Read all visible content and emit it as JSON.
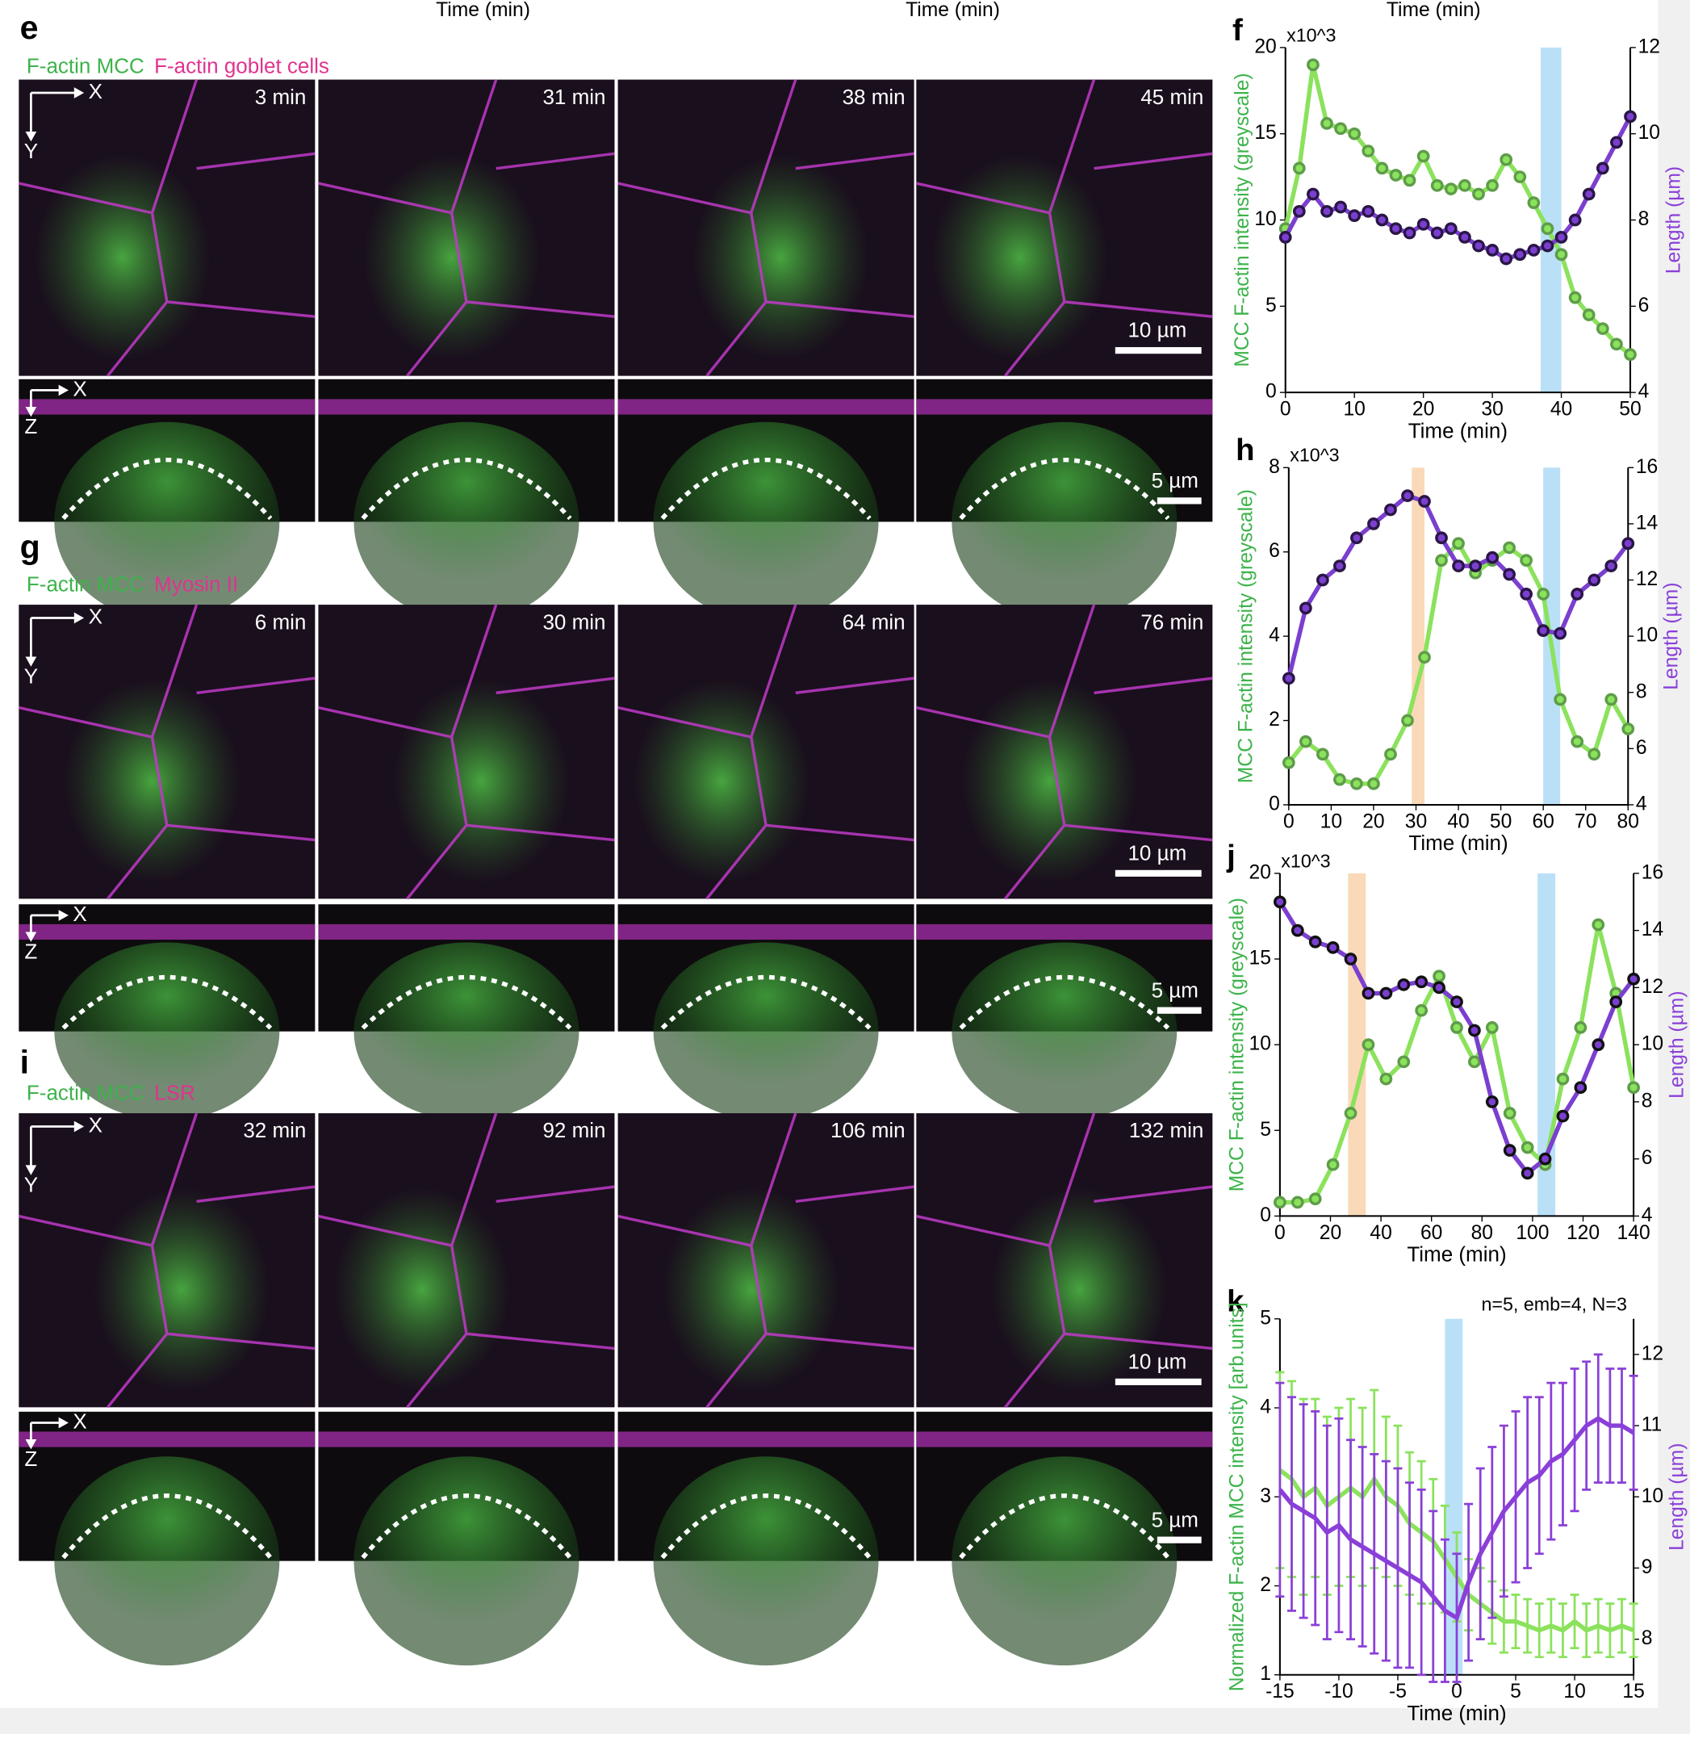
{
  "figure": {
    "top_labels": [
      "Time (min)",
      "Time (min)",
      "Time (min)"
    ],
    "panels": [
      {
        "label": "e",
        "channels": [
          {
            "text": "F-actin MCC",
            "color": "#3cb34a"
          },
          {
            "text": "F-actin goblet cells",
            "color": "#e0338f"
          }
        ],
        "xy_axes": [
          "X",
          "Y"
        ],
        "xz_axes": [
          "X",
          "Z"
        ],
        "times": [
          "3 min",
          "31 min",
          "38 min",
          "45 min"
        ],
        "scale_xy": "10 µm",
        "scale_xz": "5 µm"
      },
      {
        "label": "g",
        "channels": [
          {
            "text": "F-actin MCC",
            "color": "#3cb34a"
          },
          {
            "text": "Myosin II",
            "color": "#e0338f"
          }
        ],
        "xy_axes": [
          "X",
          "Y"
        ],
        "xz_axes": [
          "X",
          "Z"
        ],
        "times": [
          "6 min",
          "30 min",
          "64 min",
          "76 min"
        ],
        "scale_xy": "10 µm",
        "scale_xz": "5 µm"
      },
      {
        "label": "i",
        "channels": [
          {
            "text": "F-actin MCC",
            "color": "#3cb34a"
          },
          {
            "text": "LSR",
            "color": "#e0338f"
          }
        ],
        "xy_axes": [
          "X",
          "Y"
        ],
        "xz_axes": [
          "X",
          "Z"
        ],
        "times": [
          "32 min",
          "92 min",
          "106 min",
          "132 min"
        ],
        "scale_xy": "10 µm",
        "scale_xz": "5 µm"
      }
    ]
  },
  "chart_data": [
    {
      "type": "line",
      "panel_label": "f",
      "multiplier_label": "x10^3",
      "xlabel": "Time (min)",
      "ylabel": "MCC F-actin intensity (greyscale)",
      "y2label": "Length (µm)",
      "ylabel_color": "#3cb34a",
      "y2label_color": "#8a3fd8",
      "xlim": [
        0,
        50
      ],
      "xticks": [
        0,
        10,
        20,
        30,
        40,
        50
      ],
      "ylim": [
        0,
        20
      ],
      "yticks": [
        0,
        5,
        10,
        15,
        20
      ],
      "y2lim": [
        4,
        12
      ],
      "y2ticks": [
        4,
        6,
        8,
        10,
        12
      ],
      "highlights": [
        {
          "range": [
            37,
            40
          ],
          "color": "#a9d8f5"
        }
      ],
      "x": [
        0,
        2,
        4,
        6,
        8,
        10,
        12,
        14,
        16,
        18,
        20,
        22,
        24,
        26,
        28,
        30,
        32,
        34,
        36,
        38,
        40,
        42,
        44,
        46,
        48,
        50
      ],
      "series": [
        {
          "color": "#8be25c",
          "marker_edge": "#5e9c4a",
          "values": [
            9.5,
            13,
            19,
            15.6,
            15.3,
            15,
            14,
            13,
            12.6,
            12.3,
            13.7,
            12,
            11.8,
            12,
            11.5,
            12,
            13.5,
            12.5,
            11,
            9.5,
            8,
            5.5,
            4.5,
            3.7,
            2.8,
            2.2
          ]
        },
        {
          "color": "#7b3fd0",
          "marker_edge": "#2a1646",
          "axis": "y2",
          "values": [
            7.6,
            8.2,
            8.6,
            8.2,
            8.3,
            8.1,
            8.2,
            8.0,
            7.8,
            7.7,
            7.9,
            7.7,
            7.8,
            7.6,
            7.4,
            7.3,
            7.1,
            7.2,
            7.3,
            7.4,
            7.6,
            8.0,
            8.6,
            9.2,
            9.8,
            10.4
          ]
        }
      ]
    },
    {
      "type": "line",
      "panel_label": "h",
      "multiplier_label": "x10^3",
      "xlabel": "Time (min)",
      "ylabel": "MCC F-actin intensity (greyscale)",
      "y2label": "Length (µm)",
      "ylabel_color": "#3cb34a",
      "y2label_color": "#8a3fd8",
      "xlim": [
        0,
        80
      ],
      "xticks": [
        0,
        10,
        20,
        30,
        40,
        50,
        60,
        70,
        80
      ],
      "ylim": [
        0,
        8
      ],
      "yticks": [
        0,
        2,
        4,
        6,
        8
      ],
      "y2lim": [
        4,
        16
      ],
      "y2ticks": [
        4,
        6,
        8,
        10,
        12,
        14,
        16
      ],
      "highlights": [
        {
          "range": [
            29,
            32
          ],
          "color": "#f7cfa6"
        },
        {
          "range": [
            60,
            64
          ],
          "color": "#a9d8f5"
        }
      ],
      "x": [
        0,
        4,
        8,
        12,
        16,
        20,
        24,
        28,
        32,
        36,
        40,
        44,
        48,
        52,
        56,
        60,
        64,
        68,
        72,
        76,
        80
      ],
      "series": [
        {
          "color": "#8be25c",
          "marker_edge": "#5e9c4a",
          "values": [
            1,
            1.5,
            1.2,
            0.6,
            0.5,
            0.5,
            1.2,
            2,
            3.5,
            5.8,
            6.2,
            5.5,
            5.8,
            6.1,
            5.8,
            5,
            2.5,
            1.5,
            1.2,
            2.5,
            1.8
          ]
        },
        {
          "color": "#7b3fd0",
          "marker_edge": "#2a1646",
          "axis": "y2",
          "values": [
            8.5,
            11,
            12,
            12.5,
            13.5,
            14,
            14.5,
            15,
            14.8,
            13.5,
            12.5,
            12.5,
            12.8,
            12.2,
            11.5,
            10.2,
            10.1,
            11.5,
            12,
            12.5,
            13.3
          ]
        }
      ]
    },
    {
      "type": "line",
      "panel_label": "j",
      "multiplier_label": "x10^3",
      "xlabel": "Time (min)",
      "ylabel": "MCC F-actin intensity (greyscale)",
      "y2label": "Length (µm)",
      "ylabel_color": "#3cb34a",
      "y2label_color": "#8a3fd8",
      "xlim": [
        0,
        140
      ],
      "xticks": [
        0,
        20,
        40,
        60,
        80,
        100,
        120,
        140
      ],
      "ylim": [
        0,
        20
      ],
      "yticks": [
        0,
        5,
        10,
        15,
        20
      ],
      "y2lim": [
        4,
        16
      ],
      "y2ticks": [
        4,
        6,
        8,
        10,
        12,
        14,
        16
      ],
      "highlights": [
        {
          "range": [
            27,
            34
          ],
          "color": "#f7cfa6"
        },
        {
          "range": [
            102,
            109
          ],
          "color": "#a9d8f5"
        }
      ],
      "x": [
        0,
        7,
        14,
        21,
        28,
        35,
        42,
        49,
        56,
        63,
        70,
        77,
        84,
        91,
        98,
        105,
        112,
        119,
        126,
        133,
        140
      ],
      "series": [
        {
          "color": "#8be25c",
          "marker_edge": "#5e9c4a",
          "values": [
            0.8,
            0.8,
            1,
            3,
            6,
            10,
            8,
            9,
            12,
            14,
            11,
            9,
            11,
            6,
            4,
            3,
            8,
            11,
            17,
            13,
            7.5
          ]
        },
        {
          "color": "#7b3fd0",
          "marker_edge": "#111111",
          "axis": "y2",
          "values": [
            15,
            14,
            13.6,
            13.4,
            13,
            11.8,
            11.8,
            12.1,
            12.2,
            12,
            11.5,
            10.5,
            8,
            6.3,
            5.5,
            6,
            7.5,
            8.5,
            10,
            11.5,
            12.3
          ]
        }
      ]
    },
    {
      "type": "errorline",
      "panel_label": "k",
      "title": "n=5, emb=4, N=3",
      "xlabel": "Time (min)",
      "ylabel": "Normalized F-actin MCC intensity [arb.units]",
      "y2label": "Length (µm)",
      "ylabel_color": "#3cb34a",
      "y2label_color": "#8a3fd8",
      "xlim": [
        -15,
        15
      ],
      "xticks": [
        -15,
        -10,
        -5,
        0,
        5,
        10,
        15
      ],
      "ylim": [
        1,
        5
      ],
      "yticks": [
        1,
        2,
        3,
        4,
        5
      ],
      "y2lim": [
        7.5,
        12.5
      ],
      "y2ticks": [
        8,
        9,
        10,
        11,
        12
      ],
      "highlights": [
        {
          "range": [
            -1,
            0.5
          ],
          "color": "#a9d8f5"
        }
      ],
      "x": [
        -15,
        -14,
        -13,
        -12,
        -11,
        -10,
        -9,
        -8,
        -7,
        -6,
        -5,
        -4,
        -3,
        -2,
        -1,
        0,
        1,
        2,
        3,
        4,
        5,
        6,
        7,
        8,
        9,
        10,
        11,
        12,
        13,
        14,
        15
      ],
      "series": [
        {
          "color": "#8be25c",
          "values": [
            3.3,
            3.2,
            3.0,
            3.1,
            2.9,
            3.0,
            3.1,
            3.0,
            3.2,
            3.0,
            2.9,
            2.7,
            2.6,
            2.5,
            2.3,
            2.1,
            1.9,
            1.8,
            1.7,
            1.6,
            1.6,
            1.55,
            1.5,
            1.55,
            1.5,
            1.6,
            1.5,
            1.55,
            1.5,
            1.55,
            1.5
          ],
          "error": [
            1.1,
            1.1,
            1.1,
            1.0,
            1.0,
            1.0,
            1.0,
            1.0,
            1.0,
            0.9,
            0.9,
            0.8,
            0.8,
            0.7,
            0.6,
            0.5,
            0.4,
            0.4,
            0.35,
            0.35,
            0.3,
            0.3,
            0.3,
            0.3,
            0.3,
            0.3,
            0.3,
            0.3,
            0.3,
            0.3,
            0.3
          ]
        },
        {
          "color": "#8a3fd8",
          "axis": "y2",
          "values": [
            10.1,
            9.9,
            9.8,
            9.7,
            9.5,
            9.6,
            9.4,
            9.3,
            9.2,
            9.1,
            9.0,
            8.9,
            8.8,
            8.6,
            8.4,
            8.3,
            8.8,
            9.2,
            9.5,
            9.8,
            10.0,
            10.2,
            10.3,
            10.5,
            10.6,
            10.8,
            11.0,
            11.1,
            11.0,
            11.0,
            10.9
          ],
          "error": [
            1.5,
            1.5,
            1.5,
            1.5,
            1.5,
            1.5,
            1.4,
            1.4,
            1.4,
            1.4,
            1.4,
            1.3,
            1.3,
            1.2,
            1.0,
            0.9,
            1.1,
            1.2,
            1.2,
            1.2,
            1.2,
            1.2,
            1.1,
            1.1,
            1.0,
            1.0,
            0.9,
            0.9,
            0.8,
            0.8,
            0.8
          ]
        }
      ]
    }
  ]
}
